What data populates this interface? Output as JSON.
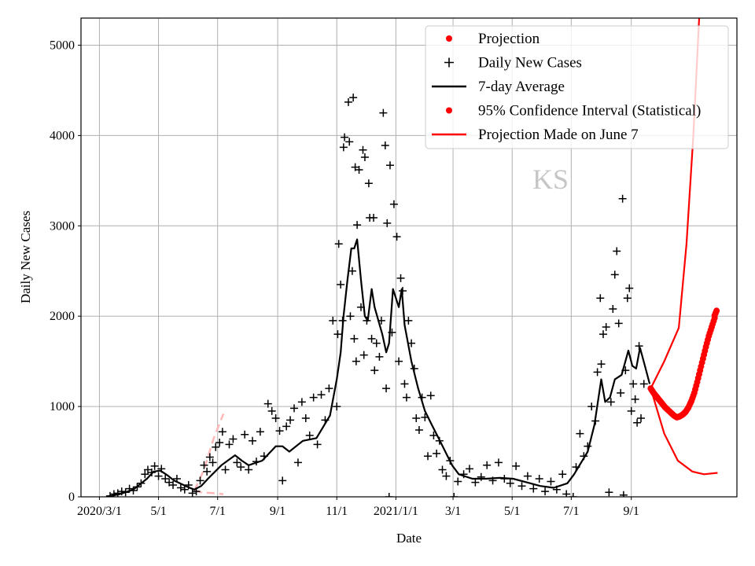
{
  "chart_data": {
    "type": "line",
    "title": "",
    "xlabel": "Date",
    "ylabel": "Daily New Cases",
    "xlim": [
      "2020-02-11",
      "2021-12-19"
    ],
    "ylim": [
      0,
      5300
    ],
    "grid": true,
    "legend_placement": "top-right",
    "watermark": "KS",
    "x_ticks": [
      {
        "date": "2020-03-01",
        "label": "2020/3/1"
      },
      {
        "date": "2020-05-01",
        "label": "5/1"
      },
      {
        "date": "2020-07-01",
        "label": "7/1"
      },
      {
        "date": "2020-09-01",
        "label": "9/1"
      },
      {
        "date": "2020-11-01",
        "label": "11/1"
      },
      {
        "date": "2021-01-01",
        "label": "2021/1/1"
      },
      {
        "date": "2021-03-01",
        "label": "3/1"
      },
      {
        "date": "2021-05-01",
        "label": "5/1"
      },
      {
        "date": "2021-07-01",
        "label": "7/1"
      },
      {
        "date": "2021-09-01",
        "label": "9/1"
      }
    ],
    "y_ticks": [
      0,
      1000,
      2000,
      3000,
      4000,
      5000
    ],
    "legend": [
      {
        "label": "Projection",
        "marker": "dot",
        "color": "#ff0000"
      },
      {
        "label": "Daily New Cases",
        "marker": "plus",
        "color": "#000000"
      },
      {
        "label": "7-day Average",
        "marker": "line",
        "color": "#000000"
      },
      {
        "label": "95% Confidence Interval (Statistical)",
        "marker": "dot",
        "color": "#ff0000"
      },
      {
        "label": "Projection Made on June 7",
        "marker": "line",
        "color": "#ff0000"
      }
    ],
    "series": [
      {
        "name": "7-day Average",
        "color": "#000000",
        "style": "line",
        "points": [
          [
            "2020-03-08",
            0
          ],
          [
            "2020-03-22",
            30
          ],
          [
            "2020-04-05",
            80
          ],
          [
            "2020-04-19",
            200
          ],
          [
            "2020-04-26",
            280
          ],
          [
            "2020-05-03",
            290
          ],
          [
            "2020-05-10",
            240
          ],
          [
            "2020-05-17",
            180
          ],
          [
            "2020-05-31",
            110
          ],
          [
            "2020-06-07",
            80
          ],
          [
            "2020-06-14",
            120
          ],
          [
            "2020-06-21",
            200
          ],
          [
            "2020-07-05",
            350
          ],
          [
            "2020-07-19",
            460
          ],
          [
            "2020-07-26",
            400
          ],
          [
            "2020-08-02",
            350
          ],
          [
            "2020-08-16",
            400
          ],
          [
            "2020-08-30",
            560
          ],
          [
            "2020-09-06",
            560
          ],
          [
            "2020-09-13",
            500
          ],
          [
            "2020-09-27",
            620
          ],
          [
            "2020-10-11",
            650
          ],
          [
            "2020-10-25",
            900
          ],
          [
            "2020-11-01",
            1300
          ],
          [
            "2020-11-05",
            1600
          ],
          [
            "2020-11-08",
            2000
          ],
          [
            "2020-11-12",
            2400
          ],
          [
            "2020-11-16",
            2750
          ],
          [
            "2020-11-19",
            2750
          ],
          [
            "2020-11-22",
            2850
          ],
          [
            "2020-11-26",
            2400
          ],
          [
            "2020-11-30",
            2000
          ],
          [
            "2020-12-03",
            1950
          ],
          [
            "2020-12-07",
            2300
          ],
          [
            "2020-12-10",
            2100
          ],
          [
            "2020-12-14",
            1950
          ],
          [
            "2020-12-18",
            1800
          ],
          [
            "2020-12-22",
            1600
          ],
          [
            "2020-12-25",
            1700
          ],
          [
            "2020-12-29",
            2300
          ],
          [
            "2021-01-01",
            2200
          ],
          [
            "2021-01-04",
            2100
          ],
          [
            "2021-01-07",
            2300
          ],
          [
            "2021-01-10",
            1900
          ],
          [
            "2021-01-17",
            1500
          ],
          [
            "2021-01-24",
            1200
          ],
          [
            "2021-01-31",
            950
          ],
          [
            "2021-02-07",
            800
          ],
          [
            "2021-02-14",
            650
          ],
          [
            "2021-02-21",
            500
          ],
          [
            "2021-02-28",
            350
          ],
          [
            "2021-03-07",
            250
          ],
          [
            "2021-03-21",
            200
          ],
          [
            "2021-04-04",
            200
          ],
          [
            "2021-04-18",
            210
          ],
          [
            "2021-05-02",
            200
          ],
          [
            "2021-05-16",
            160
          ],
          [
            "2021-05-30",
            120
          ],
          [
            "2021-06-13",
            100
          ],
          [
            "2021-06-27",
            150
          ],
          [
            "2021-07-04",
            250
          ],
          [
            "2021-07-18",
            500
          ],
          [
            "2021-07-25",
            800
          ],
          [
            "2021-08-01",
            1300
          ],
          [
            "2021-08-05",
            1050
          ],
          [
            "2021-08-10",
            1100
          ],
          [
            "2021-08-15",
            1300
          ],
          [
            "2021-08-22",
            1350
          ],
          [
            "2021-08-29",
            1620
          ],
          [
            "2021-09-02",
            1450
          ],
          [
            "2021-09-06",
            1420
          ],
          [
            "2021-09-10",
            1650
          ],
          [
            "2021-09-15",
            1450
          ],
          [
            "2021-09-20",
            1250
          ]
        ]
      },
      {
        "name": "Projection",
        "color": "#ff0000",
        "style": "dots",
        "points": [
          [
            "2021-09-21",
            1200
          ],
          [
            "2021-09-24",
            1150
          ],
          [
            "2021-09-27",
            1110
          ],
          [
            "2021-09-30",
            1070
          ],
          [
            "2021-10-03",
            1030
          ],
          [
            "2021-10-06",
            990
          ],
          [
            "2021-10-09",
            960
          ],
          [
            "2021-10-12",
            930
          ],
          [
            "2021-10-15",
            900
          ],
          [
            "2021-10-18",
            880
          ],
          [
            "2021-10-21",
            890
          ],
          [
            "2021-10-24",
            910
          ],
          [
            "2021-10-27",
            940
          ],
          [
            "2021-10-30",
            990
          ],
          [
            "2021-11-02",
            1060
          ],
          [
            "2021-11-05",
            1150
          ],
          [
            "2021-11-08",
            1270
          ],
          [
            "2021-11-11",
            1400
          ],
          [
            "2021-11-14",
            1530
          ],
          [
            "2021-11-17",
            1660
          ],
          [
            "2021-11-20",
            1780
          ],
          [
            "2021-11-23",
            1880
          ],
          [
            "2021-11-26",
            1980
          ],
          [
            "2021-11-28",
            2060
          ]
        ]
      },
      {
        "name": "95% Confidence Interval (Statistical) upper",
        "color": "#ff0000",
        "style": "line",
        "points": [
          [
            "2021-09-21",
            1200
          ],
          [
            "2021-10-05",
            1500
          ],
          [
            "2021-10-20",
            1870
          ],
          [
            "2021-10-28",
            2800
          ],
          [
            "2021-11-04",
            4000
          ],
          [
            "2021-11-10",
            5300
          ]
        ]
      },
      {
        "name": "95% Confidence Interval (Statistical) lower",
        "color": "#ff0000",
        "style": "line",
        "points": [
          [
            "2021-09-21",
            1200
          ],
          [
            "2021-10-05",
            700
          ],
          [
            "2021-10-19",
            400
          ],
          [
            "2021-11-03",
            280
          ],
          [
            "2021-11-15",
            250
          ],
          [
            "2021-11-29",
            265
          ]
        ]
      },
      {
        "name": "Projection Made on June 7",
        "color": "#ffb6b6",
        "style": "dashed",
        "points": [
          [
            "2020-06-07",
            70
          ],
          [
            "2020-06-17",
            300
          ],
          [
            "2020-06-27",
            650
          ],
          [
            "2020-07-07",
            920
          ]
        ],
        "lower": [
          [
            "2020-06-07",
            70
          ],
          [
            "2020-06-14",
            50
          ],
          [
            "2020-06-27",
            40
          ],
          [
            "2020-07-07",
            30
          ]
        ]
      }
    ],
    "daily_new_cases": [
      [
        "2020-03-12",
        10
      ],
      [
        "2020-03-16",
        30
      ],
      [
        "2020-03-20",
        40
      ],
      [
        "2020-03-24",
        60
      ],
      [
        "2020-03-28",
        50
      ],
      [
        "2020-04-01",
        90
      ],
      [
        "2020-04-05",
        70
      ],
      [
        "2020-04-09",
        110
      ],
      [
        "2020-04-13",
        150
      ],
      [
        "2020-04-17",
        250
      ],
      [
        "2020-04-20",
        300
      ],
      [
        "2020-04-24",
        270
      ],
      [
        "2020-04-27",
        340
      ],
      [
        "2020-05-01",
        230
      ],
      [
        "2020-05-04",
        310
      ],
      [
        "2020-05-08",
        200
      ],
      [
        "2020-05-12",
        160
      ],
      [
        "2020-05-16",
        130
      ],
      [
        "2020-05-20",
        200
      ],
      [
        "2020-05-24",
        100
      ],
      [
        "2020-05-28",
        80
      ],
      [
        "2020-06-01",
        130
      ],
      [
        "2020-06-05",
        40
      ],
      [
        "2020-06-09",
        60
      ],
      [
        "2020-06-13",
        180
      ],
      [
        "2020-06-17",
        350
      ],
      [
        "2020-06-20",
        280
      ],
      [
        "2020-06-23",
        440
      ],
      [
        "2020-06-26",
        380
      ],
      [
        "2020-06-29",
        550
      ],
      [
        "2020-07-03",
        600
      ],
      [
        "2020-07-06",
        720
      ],
      [
        "2020-07-09",
        300
      ],
      [
        "2020-07-13",
        580
      ],
      [
        "2020-07-17",
        640
      ],
      [
        "2020-07-21",
        380
      ],
      [
        "2020-07-25",
        330
      ],
      [
        "2020-07-29",
        690
      ],
      [
        "2020-08-02",
        300
      ],
      [
        "2020-08-06",
        620
      ],
      [
        "2020-08-10",
        390
      ],
      [
        "2020-08-14",
        720
      ],
      [
        "2020-08-18",
        450
      ],
      [
        "2020-08-22",
        1030
      ],
      [
        "2020-08-26",
        950
      ],
      [
        "2020-08-30",
        870
      ],
      [
        "2020-09-03",
        730
      ],
      [
        "2020-09-06",
        180
      ],
      [
        "2020-09-10",
        780
      ],
      [
        "2020-09-14",
        850
      ],
      [
        "2020-09-18",
        980
      ],
      [
        "2020-09-22",
        380
      ],
      [
        "2020-09-26",
        1050
      ],
      [
        "2020-09-30",
        870
      ],
      [
        "2020-10-04",
        680
      ],
      [
        "2020-10-08",
        1100
      ],
      [
        "2020-10-12",
        580
      ],
      [
        "2020-10-16",
        1130
      ],
      [
        "2020-10-20",
        850
      ],
      [
        "2020-10-24",
        1200
      ],
      [
        "2020-10-28",
        1950
      ],
      [
        "2020-11-01",
        1000
      ],
      [
        "2020-11-02",
        1800
      ],
      [
        "2020-11-03",
        2800
      ],
      [
        "2020-11-05",
        2350
      ],
      [
        "2020-11-07",
        1950
      ],
      [
        "2020-11-08",
        3870
      ],
      [
        "2020-11-09",
        3980
      ],
      [
        "2020-11-13",
        4370
      ],
      [
        "2020-11-14",
        3930
      ],
      [
        "2020-11-15",
        2000
      ],
      [
        "2020-11-17",
        2500
      ],
      [
        "2020-11-18",
        4420
      ],
      [
        "2020-11-19",
        1750
      ],
      [
        "2020-11-20",
        3650
      ],
      [
        "2020-11-21",
        1500
      ],
      [
        "2020-11-22",
        3010
      ],
      [
        "2020-11-24",
        3620
      ],
      [
        "2020-11-26",
        2100
      ],
      [
        "2020-11-28",
        3840
      ],
      [
        "2020-11-29",
        1570
      ],
      [
        "2020-11-30",
        3760
      ],
      [
        "2020-12-02",
        1950
      ],
      [
        "2020-12-04",
        3470
      ],
      [
        "2020-12-05",
        3090
      ],
      [
        "2020-12-07",
        1750
      ],
      [
        "2020-12-09",
        3090
      ],
      [
        "2020-12-10",
        1400
      ],
      [
        "2020-12-12",
        1700
      ],
      [
        "2020-12-15",
        1550
      ],
      [
        "2020-12-17",
        1950
      ],
      [
        "2020-12-19",
        4250
      ],
      [
        "2020-12-21",
        3890
      ],
      [
        "2020-12-22",
        1200
      ],
      [
        "2020-12-23",
        3030
      ],
      [
        "2020-12-25",
        0
      ],
      [
        "2020-12-26",
        3670
      ],
      [
        "2020-12-28",
        1820
      ],
      [
        "2020-12-30",
        3240
      ],
      [
        "2021-01-02",
        2880
      ],
      [
        "2021-01-04",
        1500
      ],
      [
        "2021-01-06",
        2420
      ],
      [
        "2021-01-08",
        2280
      ],
      [
        "2021-01-10",
        1250
      ],
      [
        "2021-01-12",
        1100
      ],
      [
        "2021-01-14",
        1950
      ],
      [
        "2021-01-17",
        1700
      ],
      [
        "2021-01-20",
        1420
      ],
      [
        "2021-01-22",
        870
      ],
      [
        "2021-01-25",
        740
      ],
      [
        "2021-01-28",
        1100
      ],
      [
        "2021-01-31",
        880
      ],
      [
        "2021-02-03",
        450
      ],
      [
        "2021-02-06",
        1120
      ],
      [
        "2021-02-09",
        680
      ],
      [
        "2021-02-12",
        480
      ],
      [
        "2021-02-15",
        620
      ],
      [
        "2021-02-18",
        300
      ],
      [
        "2021-02-22",
        230
      ],
      [
        "2021-02-26",
        400
      ],
      [
        "2021-03-02",
        0
      ],
      [
        "2021-03-06",
        170
      ],
      [
        "2021-03-12",
        250
      ],
      [
        "2021-03-18",
        310
      ],
      [
        "2021-03-24",
        160
      ],
      [
        "2021-03-30",
        220
      ],
      [
        "2021-04-05",
        350
      ],
      [
        "2021-04-11",
        180
      ],
      [
        "2021-04-17",
        380
      ],
      [
        "2021-04-23",
        200
      ],
      [
        "2021-04-29",
        150
      ],
      [
        "2021-05-05",
        340
      ],
      [
        "2021-05-11",
        120
      ],
      [
        "2021-05-17",
        230
      ],
      [
        "2021-05-23",
        90
      ],
      [
        "2021-05-29",
        200
      ],
      [
        "2021-06-04",
        60
      ],
      [
        "2021-06-10",
        170
      ],
      [
        "2021-06-16",
        80
      ],
      [
        "2021-06-22",
        250
      ],
      [
        "2021-06-26",
        30
      ],
      [
        "2021-07-03",
        0
      ],
      [
        "2021-07-06",
        330
      ],
      [
        "2021-07-10",
        700
      ],
      [
        "2021-07-14",
        450
      ],
      [
        "2021-07-18",
        560
      ],
      [
        "2021-07-22",
        1000
      ],
      [
        "2021-07-26",
        840
      ],
      [
        "2021-07-28",
        1380
      ],
      [
        "2021-07-31",
        2200
      ],
      [
        "2021-08-01",
        1470
      ],
      [
        "2021-08-03",
        1800
      ],
      [
        "2021-08-06",
        1880
      ],
      [
        "2021-08-09",
        50
      ],
      [
        "2021-08-11",
        1050
      ],
      [
        "2021-08-13",
        2080
      ],
      [
        "2021-08-15",
        2460
      ],
      [
        "2021-08-17",
        2720
      ],
      [
        "2021-08-19",
        1920
      ],
      [
        "2021-08-21",
        1150
      ],
      [
        "2021-08-23",
        3300
      ],
      [
        "2021-08-24",
        20
      ],
      [
        "2021-08-26",
        1400
      ],
      [
        "2021-08-28",
        2200
      ],
      [
        "2021-08-30",
        2310
      ],
      [
        "2021-09-01",
        950
      ],
      [
        "2021-09-03",
        1250
      ],
      [
        "2021-09-05",
        1080
      ],
      [
        "2021-09-07",
        820
      ],
      [
        "2021-09-09",
        1670
      ],
      [
        "2021-09-11",
        870
      ],
      [
        "2021-09-14",
        1250
      ]
    ]
  }
}
